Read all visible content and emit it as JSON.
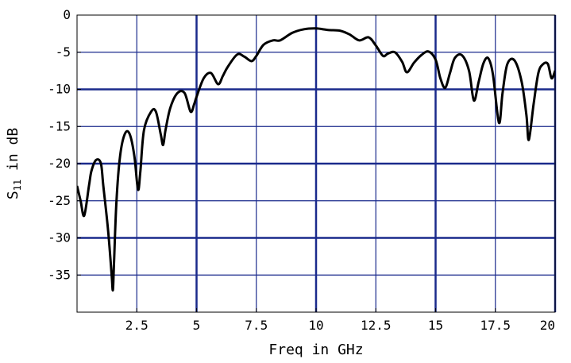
{
  "chart_data": {
    "type": "line",
    "xlabel": "Freq in GHz",
    "ylabel_main": "S",
    "ylabel_sub": "11",
    "ylabel_rest": " in dB",
    "xlim": [
      0,
      20
    ],
    "ylim": [
      -40,
      0
    ],
    "x_ticks": [
      2.5,
      5,
      7.5,
      10,
      12.5,
      15,
      17.5,
      20
    ],
    "x_tick_labels": [
      "2.5",
      "5",
      "7.5",
      "10",
      "12.5",
      "15",
      "17.5",
      "20"
    ],
    "y_ticks": [
      0,
      -5,
      -10,
      -15,
      -20,
      -25,
      -30,
      -35
    ],
    "y_tick_labels": [
      "0",
      "-5",
      "-10",
      "-15",
      "-20",
      "-25",
      "-30",
      "-35"
    ],
    "grid": true,
    "grid_color": "#1a2a8c",
    "line_color": "#000000",
    "series": [
      {
        "x": [
          0.0,
          0.15,
          0.3,
          0.5,
          0.6,
          0.8,
          1.0,
          1.1,
          1.3,
          1.45,
          1.5,
          1.55,
          1.65,
          1.8,
          2.0,
          2.2,
          2.4,
          2.55,
          2.65,
          2.8,
          3.1,
          3.3,
          3.5,
          3.6,
          3.7,
          3.9,
          4.2,
          4.5,
          4.75,
          4.9,
          5.0,
          5.3,
          5.6,
          5.9,
          6.1,
          6.3,
          6.7,
          7.0,
          7.3,
          7.5,
          7.8,
          8.2,
          8.5,
          9.0,
          9.5,
          10.0,
          10.5,
          11.0,
          11.4,
          11.8,
          12.2,
          12.5,
          12.8,
          13.0,
          13.3,
          13.6,
          13.8,
          14.1,
          14.4,
          14.7,
          15.0,
          15.2,
          15.4,
          15.6,
          15.8,
          16.1,
          16.4,
          16.6,
          16.8,
          17.0,
          17.2,
          17.4,
          17.65,
          17.8,
          18.0,
          18.3,
          18.6,
          18.8,
          18.9,
          19.1,
          19.3,
          19.5,
          19.7,
          19.85,
          20.0
        ],
        "y": [
          -23,
          -25,
          -27,
          -23,
          -21,
          -19.5,
          -20,
          -23,
          -29,
          -35,
          -37,
          -33,
          -25,
          -19,
          -16,
          -16,
          -19,
          -23.5,
          -21,
          -15.5,
          -13,
          -13,
          -16,
          -17.5,
          -15.5,
          -12.5,
          -10.5,
          -10.5,
          -13,
          -12,
          -11,
          -8.5,
          -7.8,
          -9.3,
          -8.2,
          -7,
          -5.3,
          -5.6,
          -6.2,
          -5.5,
          -4,
          -3.4,
          -3.4,
          -2.4,
          -1.9,
          -1.8,
          -2.0,
          -2.1,
          -2.6,
          -3.4,
          -3.0,
          -4.1,
          -5.5,
          -5.2,
          -5.0,
          -6.3,
          -7.7,
          -6.4,
          -5.4,
          -4.9,
          -6.0,
          -8.5,
          -9.8,
          -7.8,
          -5.8,
          -5.4,
          -7.5,
          -11.5,
          -9.0,
          -6.5,
          -5.8,
          -8.0,
          -14.5,
          -10.5,
          -6.6,
          -6.1,
          -9.0,
          -13.5,
          -16.8,
          -12.0,
          -7.8,
          -6.6,
          -6.6,
          -8.5,
          -7.5
        ]
      }
    ]
  }
}
